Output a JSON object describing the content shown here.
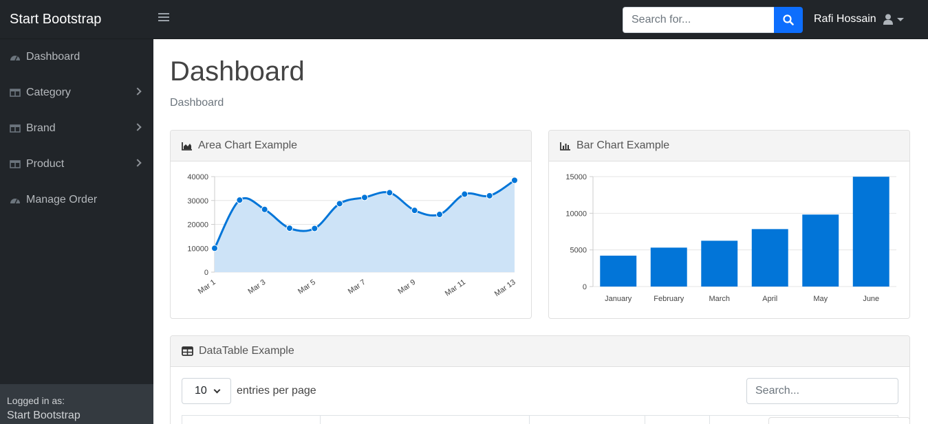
{
  "navbar": {
    "brand": "Start Bootstrap",
    "search_placeholder": "Search for...",
    "user_name": "Rafi Hossain"
  },
  "sidebar": {
    "items": [
      {
        "label": "Dashboard",
        "icon": "tachometer-icon",
        "has_arrow": false
      },
      {
        "label": "Category",
        "icon": "columns-icon",
        "has_arrow": true
      },
      {
        "label": "Brand",
        "icon": "columns-icon",
        "has_arrow": true
      },
      {
        "label": "Product",
        "icon": "columns-icon",
        "has_arrow": true
      },
      {
        "label": "Manage Order",
        "icon": "tachometer-icon",
        "has_arrow": false
      }
    ],
    "footer": {
      "logged_in_label": "Logged in as:",
      "user": "Start Bootstrap"
    }
  },
  "main": {
    "title": "Dashboard",
    "breadcrumb": "Dashboard",
    "area_card_title": "Area Chart Example",
    "bar_card_title": "Bar Chart Example",
    "table_card_title": "DataTable Example",
    "datatable": {
      "entries_value": "10",
      "entries_label": "entries per page",
      "search_placeholder": "Search..."
    }
  },
  "colors": {
    "navbar_bg": "#212529",
    "accent": "#0d6efd",
    "chart_blue": "#0275d8",
    "area_fill": "#cde3f7"
  },
  "chart_data": [
    {
      "type": "area",
      "title": "Area Chart Example",
      "x": [
        "Mar 1",
        "Mar 2",
        "Mar 3",
        "Mar 4",
        "Mar 5",
        "Mar 6",
        "Mar 7",
        "Mar 8",
        "Mar 9",
        "Mar 10",
        "Mar 11",
        "Mar 12",
        "Mar 13"
      ],
      "x_tick_labels": [
        "Mar 1",
        "Mar 3",
        "Mar 5",
        "Mar 7",
        "Mar 9",
        "Mar 11",
        "Mar 13"
      ],
      "values": [
        10000,
        30162,
        26263,
        18394,
        18287,
        28682,
        31274,
        33259,
        25849,
        24159,
        32651,
        31984,
        38451
      ],
      "ylim": [
        0,
        40000
      ],
      "y_ticks": [
        0,
        10000,
        20000,
        30000,
        40000
      ],
      "grid": true
    },
    {
      "type": "bar",
      "title": "Bar Chart Example",
      "categories": [
        "January",
        "February",
        "March",
        "April",
        "May",
        "June"
      ],
      "values": [
        4215,
        5312,
        6251,
        7841,
        9821,
        14984
      ],
      "ylim": [
        0,
        15000
      ],
      "y_ticks": [
        0,
        5000,
        10000,
        15000
      ],
      "grid": true
    }
  ]
}
